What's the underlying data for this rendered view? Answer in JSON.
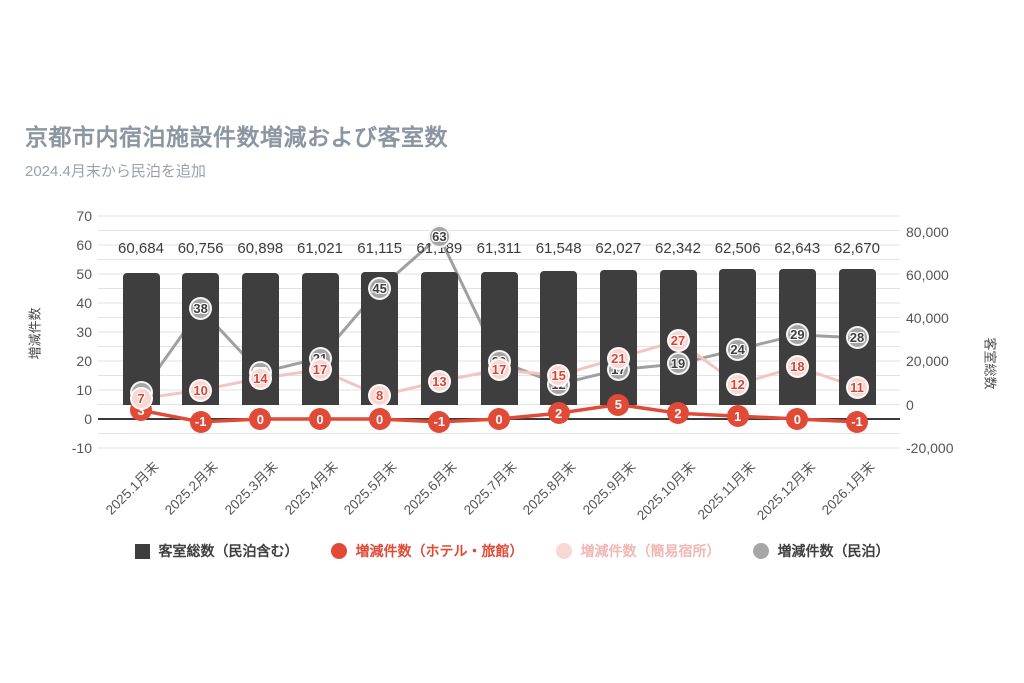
{
  "chart_data": {
    "type": "combo-bar-line",
    "title": "京都市内宿泊施設件数増減および客室数",
    "subtitle": "2024.4月末から民泊を追加",
    "categories": [
      "2025.1月末",
      "2025.2月末",
      "2025.3月末",
      "2025.4月末",
      "2025.5月末",
      "2025.6月末",
      "2025.7月末",
      "2025.8月末",
      "2025.9月末",
      "2025.10月末",
      "2025.11月末",
      "2025.12月末",
      "2026.1月末"
    ],
    "bar_series": {
      "key": "rooms-total",
      "name": "客室総数（民泊含む）",
      "axis": "right",
      "color": "#3e3e3e",
      "value_label_color": "#3c3c3c",
      "legend_text_color": "#3e3e3e",
      "values": [
        60684,
        60756,
        60898,
        61021,
        61115,
        61189,
        61311,
        61548,
        62027,
        62342,
        62506,
        62643,
        62670
      ]
    },
    "line_series": [
      {
        "key": "hotel-ryokan",
        "name": "増減件数（ホテル・旅館）",
        "axis": "left",
        "line_color": "#e04a37",
        "marker_fill": "#e04a37",
        "marker_text_color": "#ffffff",
        "legend_text_color": "#e04a37",
        "halo": false,
        "white_ring": false,
        "values": [
          3,
          -1,
          0,
          0,
          0,
          -1,
          0,
          2,
          5,
          2,
          1,
          0,
          -1
        ]
      },
      {
        "key": "simple-lodging",
        "name": "増減件数（簡易宿所）",
        "axis": "left",
        "line_color": "#f3c4c2",
        "marker_fill": "#f8d7d5",
        "marker_text_color": "#d84433",
        "legend_text_color": "#f0b7b4",
        "halo": true,
        "white_ring": true,
        "values": [
          7,
          10,
          14,
          17,
          8,
          13,
          17,
          15,
          21,
          27,
          12,
          18,
          11
        ]
      },
      {
        "key": "minpaku",
        "name": "増減件数（民泊）",
        "axis": "left",
        "line_color": "#a0a0a0",
        "marker_fill": "#a6a6a6",
        "marker_text_color": "#3f3f3f",
        "legend_text_color": "#3e3e3e",
        "halo": true,
        "white_ring": true,
        "values": [
          9,
          38,
          16,
          21,
          45,
          63,
          20,
          12,
          17,
          19,
          24,
          29,
          28
        ]
      }
    ],
    "left_axis": {
      "label": "増減件数",
      "min": -10,
      "max": 70,
      "tick_step": 10,
      "grid_step": 5
    },
    "right_axis": {
      "label": "客室総数",
      "min": -20000,
      "max": 80000,
      "tick_step": 20000
    },
    "grid": true,
    "legend_position": "bottom",
    "colors": {
      "grid": "#e2e2e2",
      "zero_line": "#3a3a3a",
      "title": "#8c96a2",
      "subtitle": "#99a2ab",
      "tick_text": "#555555"
    }
  }
}
